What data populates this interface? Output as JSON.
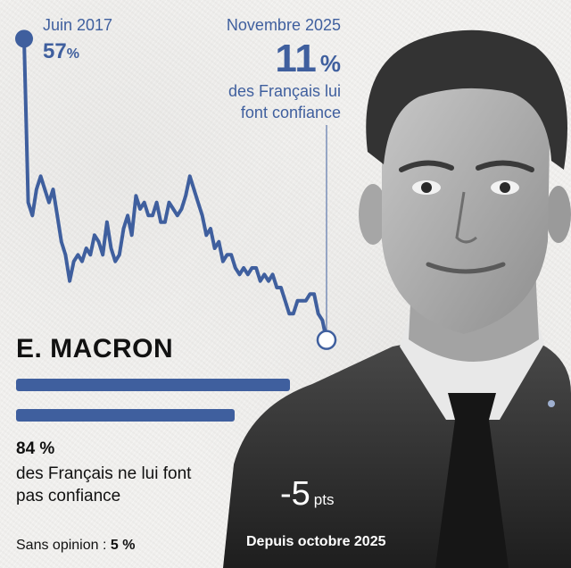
{
  "chart_data": {
    "type": "line",
    "title": "",
    "series": [
      {
        "name": "Confiance",
        "values": [
          57,
          32,
          30,
          34,
          36,
          34,
          32,
          34,
          30,
          26,
          24,
          20,
          23,
          24,
          23,
          25,
          24,
          27,
          26,
          24,
          29,
          25,
          23,
          24,
          28,
          30,
          27,
          33,
          31,
          32,
          30,
          30,
          32,
          29,
          29,
          32,
          31,
          30,
          31,
          33,
          36,
          34,
          32,
          30,
          27,
          28,
          25,
          26,
          23,
          24,
          24,
          22,
          21,
          22,
          21,
          22,
          22,
          20,
          21,
          20,
          21,
          19,
          19,
          17,
          15,
          15,
          17,
          17,
          17,
          18,
          18,
          15,
          14,
          11
        ]
      }
    ],
    "ylim": [
      10,
      58
    ],
    "start": {
      "date": "Juin 2017",
      "value": "57",
      "unit": "%"
    },
    "end": {
      "date": "Novembre 2025",
      "value": "11",
      "unit": "%",
      "text": "des Français lui font confiance"
    }
  },
  "person": {
    "name": "E. MACRON"
  },
  "no_confidence": {
    "value": "84 %",
    "text": "des Français ne lui font pas confiance"
  },
  "no_opinion": {
    "label": "Sans opinion :",
    "value": "5 %"
  },
  "delta": {
    "value": "-5",
    "unit": "pts",
    "since": "Depuis octobre 2025"
  },
  "colors": {
    "accent": "#3f5f9e",
    "text": "#111111"
  }
}
